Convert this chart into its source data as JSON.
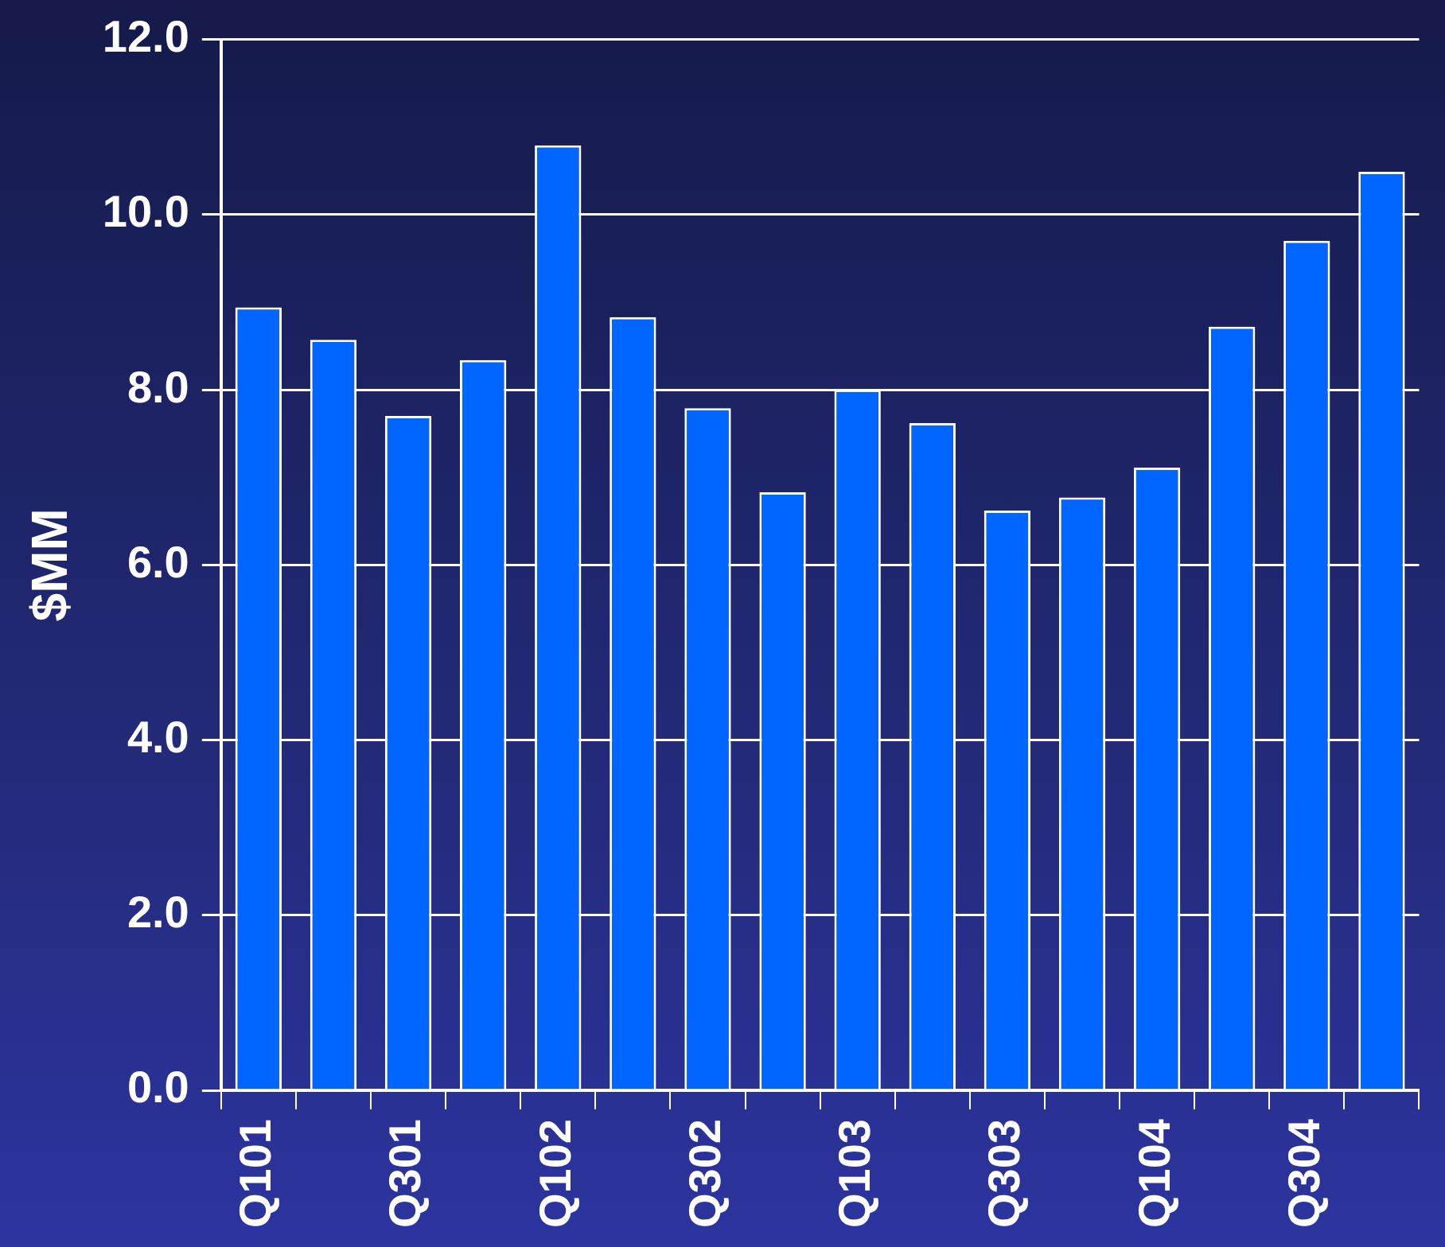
{
  "chart_data": {
    "type": "bar",
    "ylabel": "$MM",
    "categories": [
      "Q101",
      null,
      "Q301",
      null,
      "Q102",
      null,
      "Q302",
      null,
      "Q103",
      null,
      "Q303",
      null,
      "Q104",
      null,
      "Q304",
      null
    ],
    "values": [
      8.94,
      8.57,
      7.7,
      8.34,
      10.79,
      8.83,
      7.79,
      6.83,
      8.0,
      7.62,
      6.62,
      6.77,
      7.11,
      8.72,
      9.7,
      10.49
    ],
    "color": "#0066ff",
    "ylim": [
      0,
      12
    ],
    "yticks": [
      {
        "value": 0,
        "label": "0.0"
      },
      {
        "value": 2,
        "label": "2.0"
      },
      {
        "value": 4,
        "label": "4.0"
      },
      {
        "value": 6,
        "label": "6.0"
      },
      {
        "value": 8,
        "label": "8.0"
      },
      {
        "value": 10,
        "label": "10.0"
      },
      {
        "value": 12,
        "label": "12.0"
      }
    ],
    "grid": "y",
    "legend": false
  }
}
